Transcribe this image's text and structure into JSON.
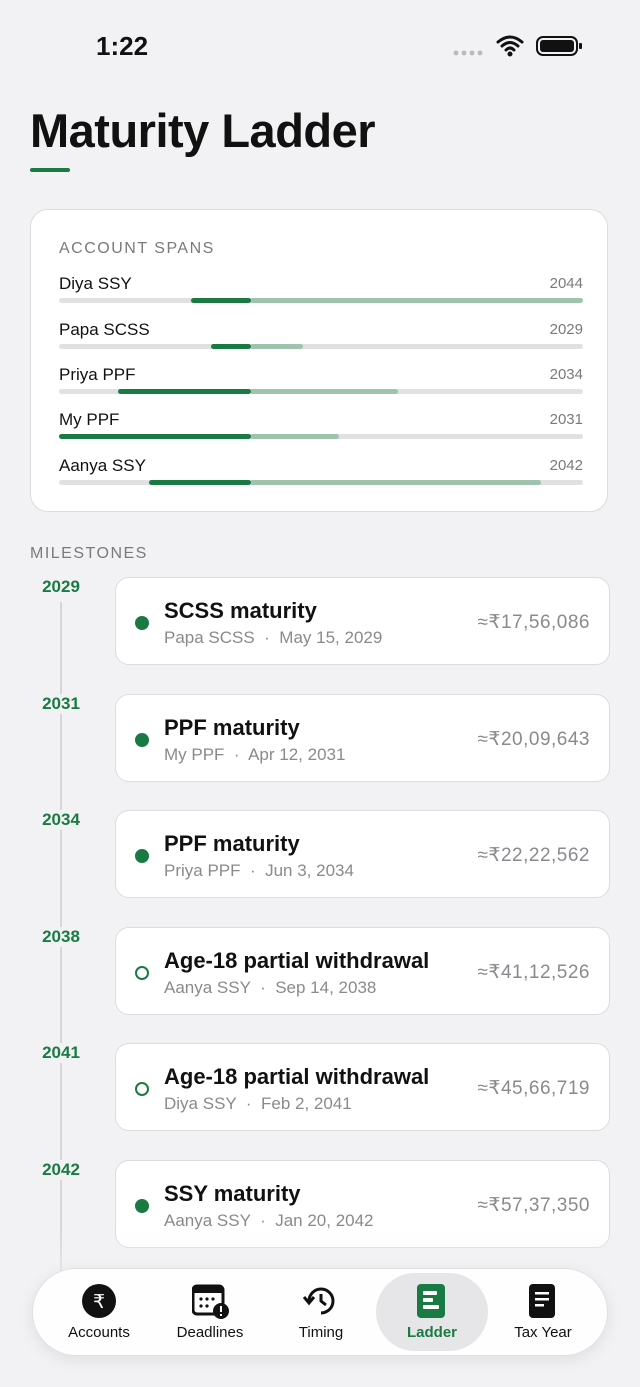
{
  "status_bar": {
    "time": "1:22"
  },
  "header": {
    "title": "Maturity Ladder"
  },
  "account_spans": {
    "heading": "ACCOUNT SPANS",
    "rows": [
      {
        "name": "Diya SSY",
        "year": "2044"
      },
      {
        "name": "Papa SCSS",
        "year": "2029"
      },
      {
        "name": "Priya PPF",
        "year": "2034"
      },
      {
        "name": "My PPF",
        "year": "2031"
      },
      {
        "name": "Aanya SSY",
        "year": "2042"
      }
    ]
  },
  "milestones": {
    "heading": "MILESTONES",
    "items": [
      {
        "year": "2029",
        "title": "SCSS maturity",
        "account": "Papa SCSS",
        "date": "May 15, 2029",
        "amount": "≈₹17,56,086",
        "dot": "filled"
      },
      {
        "year": "2031",
        "title": "PPF maturity",
        "account": "My PPF",
        "date": "Apr 12, 2031",
        "amount": "≈₹20,09,643",
        "dot": "filled"
      },
      {
        "year": "2034",
        "title": "PPF maturity",
        "account": "Priya PPF",
        "date": "Jun 3, 2034",
        "amount": "≈₹22,22,562",
        "dot": "filled"
      },
      {
        "year": "2038",
        "title": "Age-18 partial withdrawal",
        "account": "Aanya SSY",
        "date": "Sep 14, 2038",
        "amount": "≈₹41,12,526",
        "dot": "open"
      },
      {
        "year": "2041",
        "title": "Age-18 partial withdrawal",
        "account": "Diya SSY",
        "date": "Feb 2, 2041",
        "amount": "≈₹45,66,719",
        "dot": "open"
      },
      {
        "year": "2042",
        "title": "SSY maturity",
        "account": "Aanya SSY",
        "date": "Jan 20, 2042",
        "amount": "≈₹57,37,350",
        "dot": "filled"
      }
    ]
  },
  "tab_bar": {
    "tabs": [
      {
        "label": "Accounts"
      },
      {
        "label": "Deadlines"
      },
      {
        "label": "Timing"
      },
      {
        "label": "Ladder"
      },
      {
        "label": "Tax Year"
      }
    ],
    "active": 3
  }
}
